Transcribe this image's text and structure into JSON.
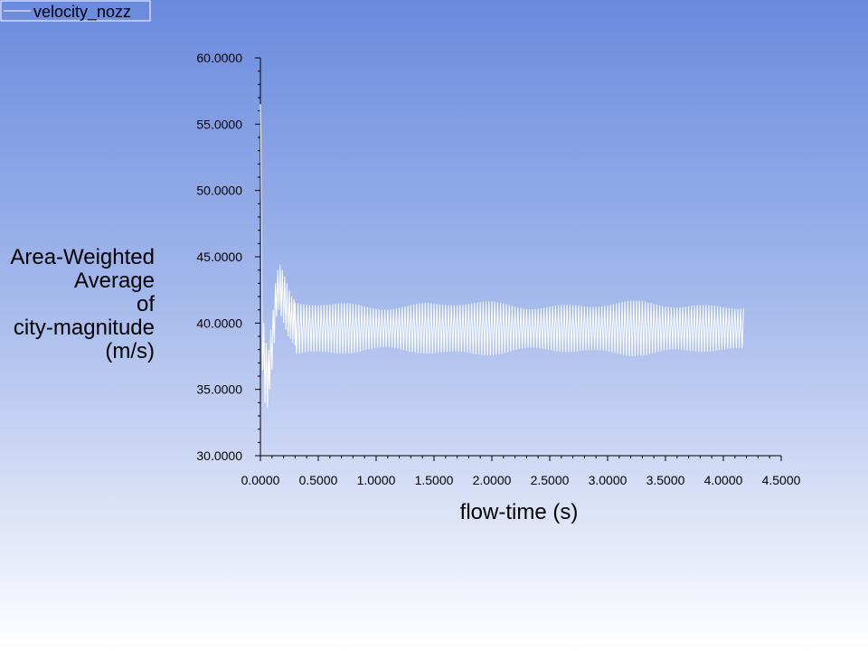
{
  "chart_data": {
    "type": "line",
    "xlabel": "flow-time (s)",
    "ylabel_lines": [
      "Area-Weighted",
      "Average",
      "of",
      "city-magnitude",
      "(m/s)"
    ],
    "xlim": [
      0,
      4.5
    ],
    "ylim": [
      30,
      60
    ],
    "x_ticks": [
      "0.0000",
      "0.5000",
      "1.0000",
      "1.5000",
      "2.0000",
      "2.5000",
      "3.0000",
      "3.5000",
      "4.0000",
      "4.5000"
    ],
    "y_ticks": [
      "30.0000",
      "35.0000",
      "40.0000",
      "45.0000",
      "50.0000",
      "55.0000",
      "60.0000"
    ],
    "legend": {
      "position": "top-left"
    },
    "series": [
      {
        "name": "velocity_nozz",
        "color": "#ffffff",
        "points": [
          [
            0.0,
            56.5
          ],
          [
            0.004,
            54.0
          ],
          [
            0.008,
            49.0
          ],
          [
            0.012,
            44.0
          ],
          [
            0.016,
            39.0
          ],
          [
            0.02,
            36.5
          ],
          [
            0.03,
            40.0
          ],
          [
            0.04,
            34.0
          ],
          [
            0.05,
            38.5
          ],
          [
            0.06,
            33.6
          ],
          [
            0.07,
            38.0
          ],
          [
            0.08,
            35.0
          ],
          [
            0.09,
            39.5
          ],
          [
            0.1,
            36.5
          ],
          [
            0.11,
            41.0
          ],
          [
            0.12,
            38.5
          ],
          [
            0.13,
            43.0
          ],
          [
            0.14,
            40.5
          ],
          [
            0.15,
            44.0
          ],
          [
            0.16,
            41.0
          ],
          [
            0.17,
            44.4
          ],
          [
            0.18,
            40.5
          ],
          [
            0.19,
            44.0
          ],
          [
            0.2,
            40.0
          ],
          [
            0.21,
            43.5
          ],
          [
            0.22,
            39.5
          ],
          [
            0.23,
            43.0
          ],
          [
            0.24,
            39.0
          ],
          [
            0.25,
            42.5
          ],
          [
            0.26,
            38.8
          ],
          [
            0.27,
            42.0
          ],
          [
            0.28,
            38.5
          ],
          [
            0.29,
            41.8
          ],
          [
            0.3,
            38.3
          ]
        ],
        "steady_state": {
          "x_start": 0.3,
          "x_end": 4.18,
          "period_s": 0.025,
          "center": 39.6,
          "amplitude": 1.75,
          "amplitude_variation": 0.35
        }
      }
    ]
  }
}
